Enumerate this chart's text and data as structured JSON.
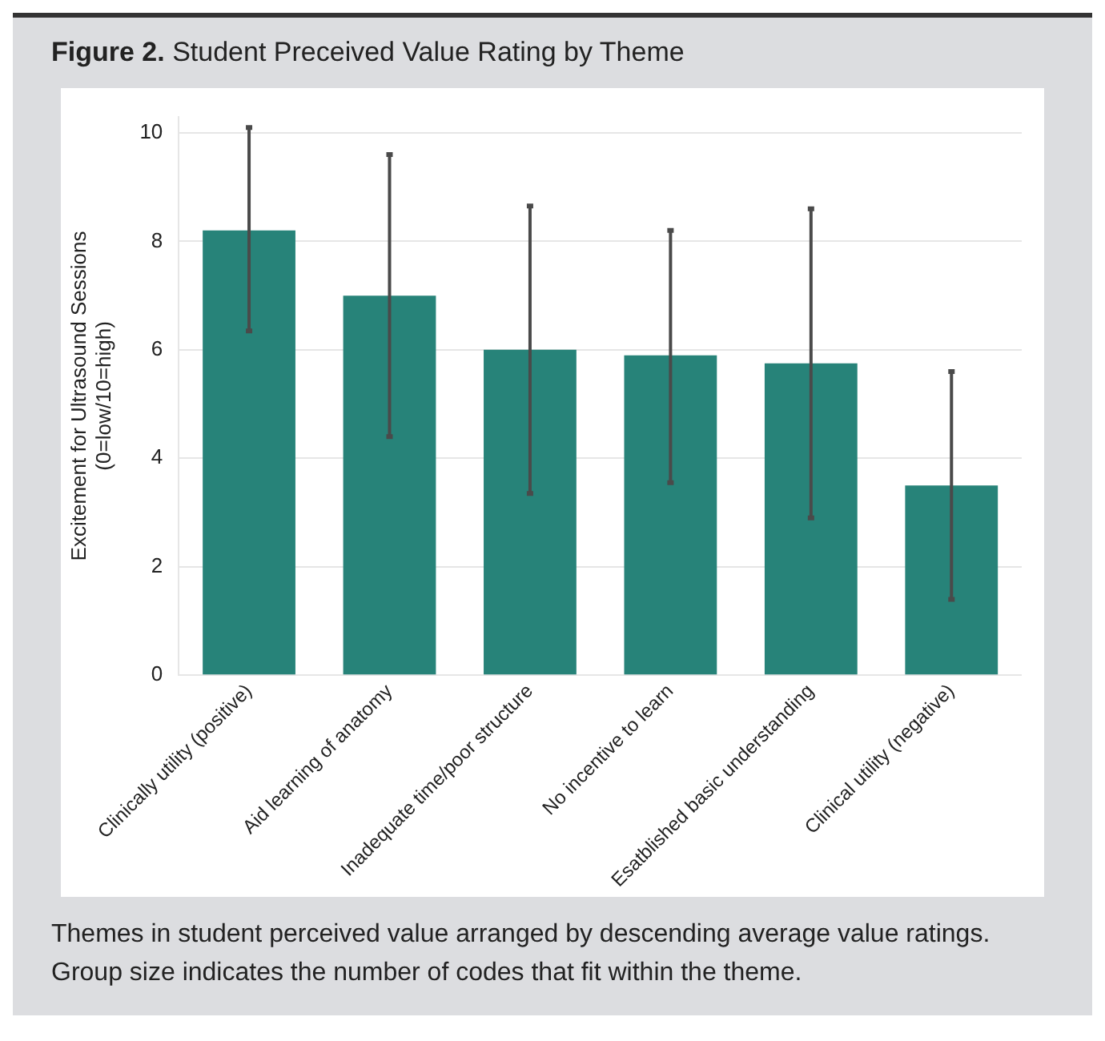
{
  "chart_data": {
    "type": "bar",
    "title": "Figure 2. Student Preceived Value Rating by Theme",
    "ylabel": "Excitement for Ultrasound Sessions\n(0=low/10=high)",
    "categories": [
      "Clinically utility (positive)",
      "Aid learning of anatomy",
      "Inadequate time/poor structure",
      "No incentive to learn",
      "Esatblished basic understanding",
      "Clinical utility (negative)"
    ],
    "values": [
      8.2,
      7.0,
      6.0,
      5.9,
      5.75,
      3.5
    ],
    "errors": [
      [
        6.35,
        10.1
      ],
      [
        4.4,
        9.6
      ],
      [
        3.35,
        8.65
      ],
      [
        3.55,
        8.2
      ],
      [
        2.9,
        8.6
      ],
      [
        1.4,
        5.6
      ]
    ],
    "color": "#278379",
    "ylim": [
      0,
      10.3
    ],
    "yticks": [
      0,
      2,
      4,
      6,
      8,
      10
    ],
    "grid": "y",
    "annotations": [
      "Themes in student perceived value arranged by descending average value ratings. Group size indicates the number of codes that fit within the theme."
    ]
  }
}
